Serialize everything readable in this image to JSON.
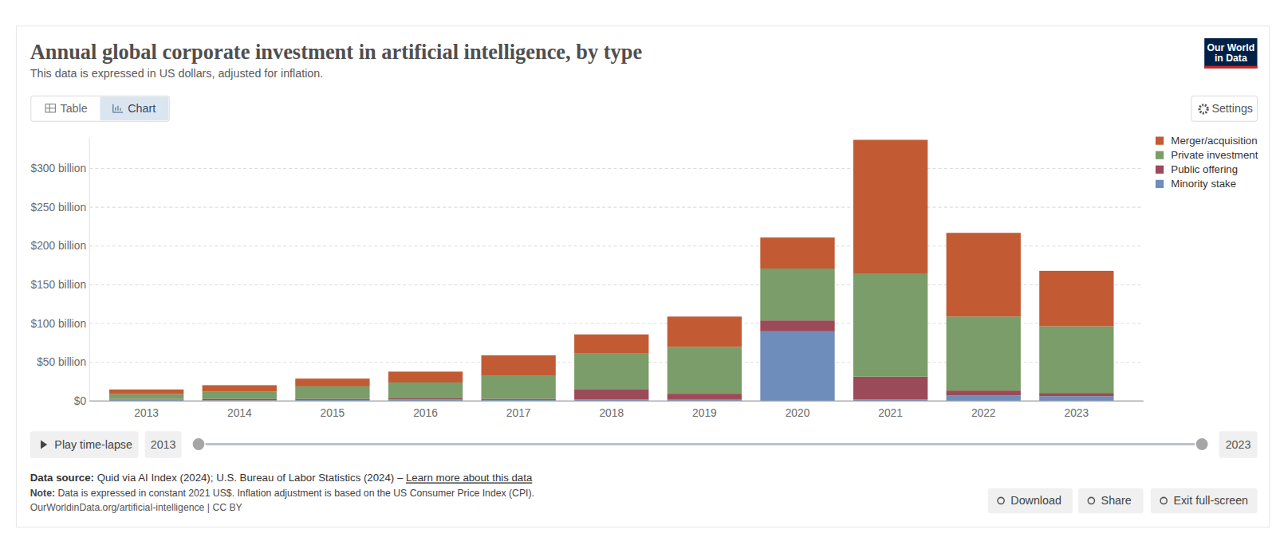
{
  "chart_data": {
    "type": "bar",
    "title": "Annual global corporate investment in artificial intelligence, by type",
    "subtitle": "This data is expressed in US dollars, adjusted for inflation.",
    "categories": [
      "2013",
      "2014",
      "2015",
      "2016",
      "2017",
      "2018",
      "2019",
      "2020",
      "2021",
      "2022",
      "2023"
    ],
    "series": [
      {
        "name": "Merger/acquisition",
        "color": "#c25b33",
        "values": [
          6,
          8,
          10,
          14,
          26.5,
          24,
          39,
          40,
          173,
          108,
          71.5
        ]
      },
      {
        "name": "Private investment",
        "color": "#7a9d69",
        "values": [
          6,
          9.5,
          16,
          20.5,
          29.5,
          46.5,
          60.5,
          67,
          132.5,
          95.4,
          86
        ]
      },
      {
        "name": "Public offering",
        "color": "#9b4a5a",
        "values": [
          1,
          2,
          1.5,
          1.5,
          1.5,
          13.5,
          7,
          14,
          29.5,
          6.3,
          4.2
        ]
      },
      {
        "name": "Minority stake",
        "color": "#6f8dba",
        "values": [
          2,
          1,
          1.5,
          2,
          1.5,
          2,
          2.5,
          90,
          2,
          7.3,
          6.3
        ]
      }
    ],
    "stacked": true,
    "grid": true,
    "legend": "right",
    "ylim": [
      0,
      340
    ],
    "yticks": [
      {
        "value": 0,
        "label": "$0"
      },
      {
        "value": 50,
        "label": "$50 billion"
      },
      {
        "value": 100,
        "label": "$100 billion"
      },
      {
        "value": 150,
        "label": "$150 billion"
      },
      {
        "value": 200,
        "label": "$200 billion"
      },
      {
        "value": 250,
        "label": "$250 billion"
      },
      {
        "value": 300,
        "label": "$300 billion"
      }
    ]
  },
  "ui": {
    "logo": [
      "Our World",
      "in Data"
    ],
    "tabs": [
      "Table",
      "Chart"
    ],
    "settings": "Settings",
    "play": "Play time-lapse",
    "timeline_start": "2013",
    "timeline_end": "2023",
    "source_label": "Data source:",
    "source": " Quid via AI Index (2024); U.S. Bureau of Labor Statistics (2024) – ",
    "source_link": "Learn more about this data",
    "note_label": "Note:",
    "note": " Data is expressed in constant 2021 US$. Inflation adjustment is based on the US Consumer Price Index (CPI).",
    "url": "OurWorldinData.org/artificial-intelligence | CC BY",
    "buttons": [
      "Download",
      "Share",
      "Exit full-screen"
    ]
  }
}
